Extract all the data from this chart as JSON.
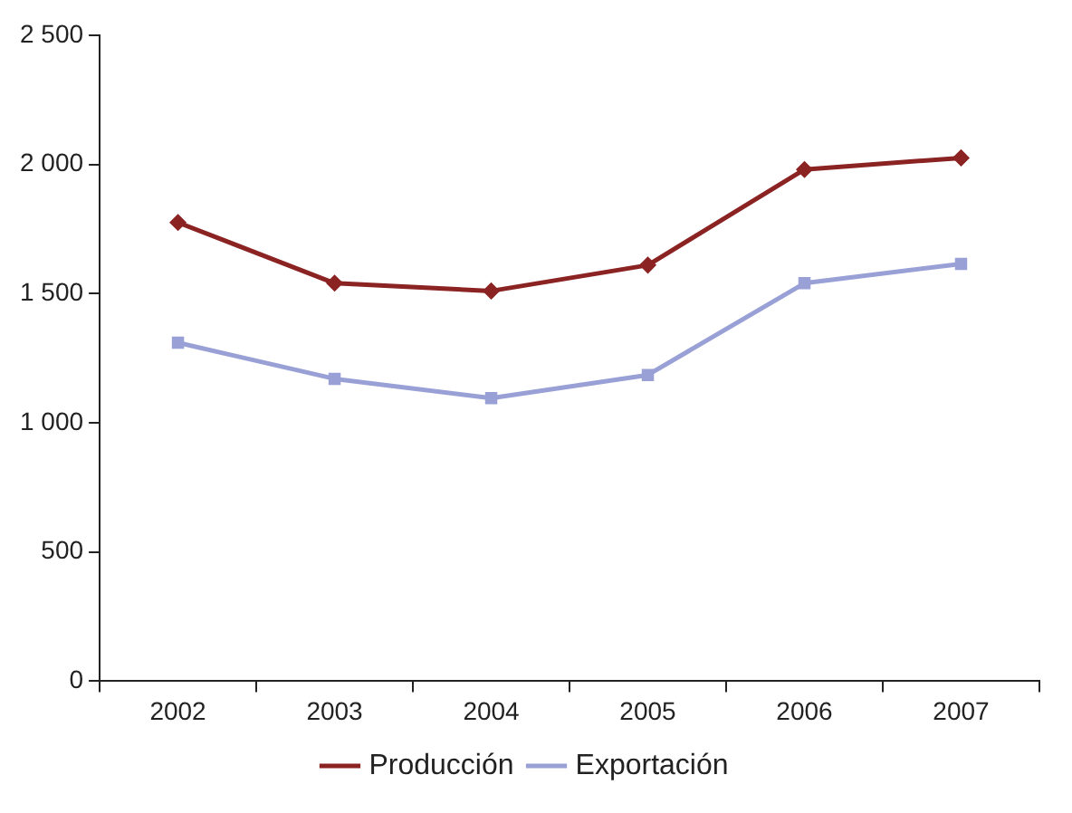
{
  "chart_data": {
    "type": "line",
    "categories": [
      "2002",
      "2003",
      "2004",
      "2005",
      "2006",
      "2007"
    ],
    "series": [
      {
        "name": "Producción",
        "color": "#8b2323",
        "marker": "diamond",
        "values": [
          1775,
          1540,
          1510,
          1610,
          1980,
          2025
        ]
      },
      {
        "name": "Exportación",
        "color": "#98a0d6",
        "marker": "square",
        "values": [
          1310,
          1170,
          1095,
          1185,
          1540,
          1615
        ]
      }
    ],
    "ylim": [
      0,
      2500
    ],
    "yticks": [
      {
        "value": 0,
        "label": "0"
      },
      {
        "value": 500,
        "label": "500"
      },
      {
        "value": 1000,
        "label": "1 000"
      },
      {
        "value": 1500,
        "label": "1 500"
      },
      {
        "value": 2000,
        "label": "2 000"
      },
      {
        "value": 2500,
        "label": "2 500"
      }
    ],
    "grid": false,
    "legend": "bottom",
    "line_style": "solid"
  }
}
